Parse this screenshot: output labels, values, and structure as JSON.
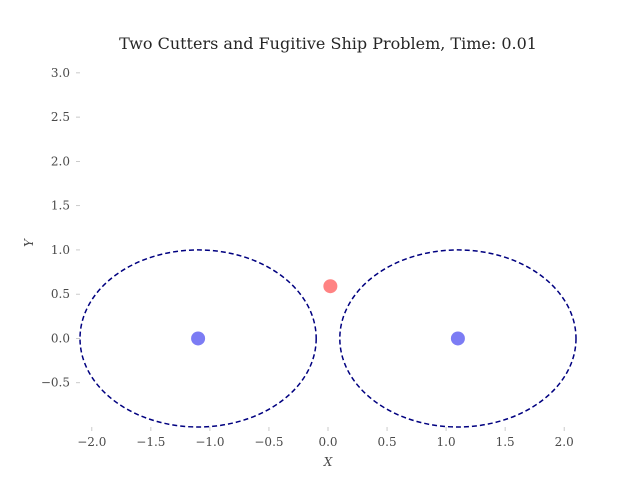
{
  "chart_data": {
    "type": "scatter",
    "title": "Two Cutters and Fugitive Ship Problem, Time: 0.01",
    "xlabel": "X",
    "ylabel": "Y",
    "xlim": [
      -2.1,
      2.1
    ],
    "ylim": [
      -1.0,
      3.1
    ],
    "x_ticks": [
      -2.0,
      -1.5,
      -1.0,
      -0.5,
      0.0,
      0.5,
      1.0,
      1.5,
      2.0
    ],
    "x_tick_labels": [
      "−2.0",
      "−1.5",
      "−1.0",
      "−0.5",
      "0.0",
      "0.5",
      "1.0",
      "1.5",
      "2.0"
    ],
    "y_ticks": [
      -0.5,
      0.0,
      0.5,
      1.0,
      1.5,
      2.0,
      2.5,
      3.0
    ],
    "y_tick_labels": [
      "−0.5",
      "0.0",
      "0.5",
      "1.0",
      "1.5",
      "2.0",
      "2.5",
      "3.0"
    ],
    "grid": false,
    "points": [
      {
        "role": "cutter",
        "x": -1.1,
        "y": 0.0,
        "color": "#5050f0"
      },
      {
        "role": "cutter",
        "x": 1.1,
        "y": 0.0,
        "color": "#5050f0"
      },
      {
        "role": "fugitive",
        "x": 0.02,
        "y": 0.59,
        "color": "#ff5a5a"
      }
    ],
    "circles": [
      {
        "cx": -1.1,
        "cy": 0.0,
        "r": 1.0,
        "color": "#000080",
        "style": "dashed"
      },
      {
        "cx": 1.1,
        "cy": 0.0,
        "r": 1.0,
        "color": "#000080",
        "style": "dashed"
      }
    ]
  }
}
